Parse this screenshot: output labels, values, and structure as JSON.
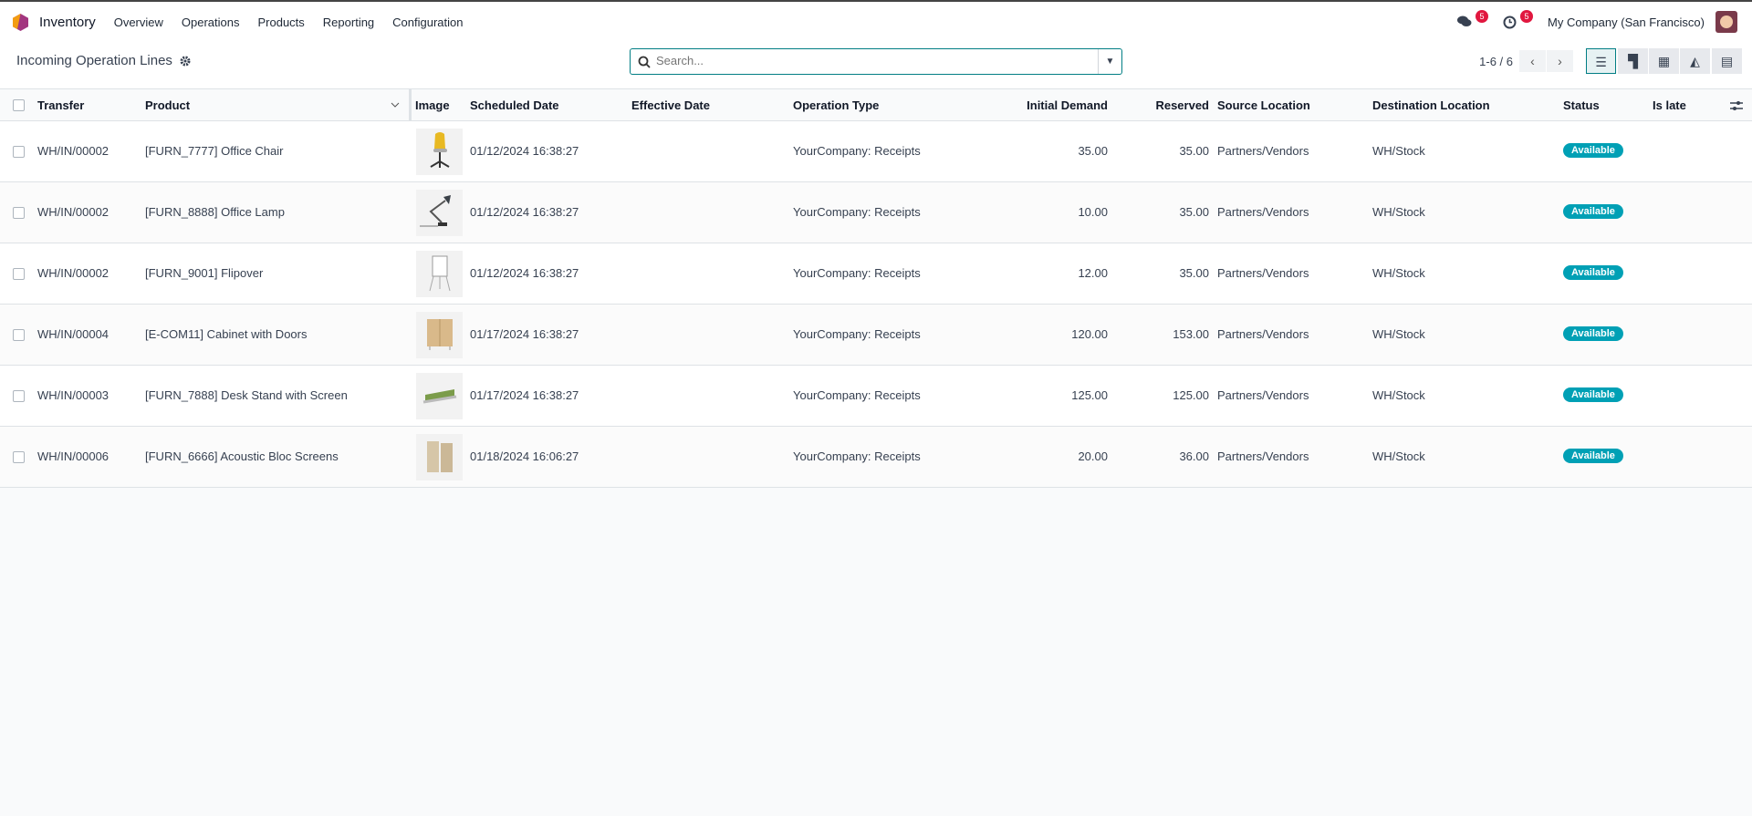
{
  "nav": {
    "app": "Inventory",
    "menu": [
      "Overview",
      "Operations",
      "Products",
      "Reporting",
      "Configuration"
    ],
    "messages_count": "5",
    "activities_count": "5",
    "company": "My Company (San Francisco)"
  },
  "control": {
    "title": "Incoming Operation Lines",
    "search_placeholder": "Search...",
    "pager": "1-6 / 6",
    "views": [
      "list",
      "kanban",
      "pivot",
      "graph",
      "calendar"
    ],
    "active_view": "list"
  },
  "table": {
    "headers": {
      "transfer": "Transfer",
      "product": "Product",
      "image": "Image",
      "scheduled": "Scheduled Date",
      "effective": "Effective Date",
      "optype": "Operation Type",
      "demand": "Initial Demand",
      "reserved": "Reserved",
      "source": "Source Location",
      "dest": "Destination Location",
      "status": "Status",
      "late": "Is late"
    },
    "rows": [
      {
        "transfer": "WH/IN/00002",
        "product": "[FURN_7777] Office Chair",
        "image": "chair",
        "scheduled": "01/12/2024 16:38:27",
        "effective": "",
        "optype": "YourCompany: Receipts",
        "demand": "35.00",
        "reserved": "35.00",
        "source": "Partners/Vendors",
        "dest": "WH/Stock",
        "status": "Available"
      },
      {
        "transfer": "WH/IN/00002",
        "product": "[FURN_8888] Office Lamp",
        "image": "lamp",
        "scheduled": "01/12/2024 16:38:27",
        "effective": "",
        "optype": "YourCompany: Receipts",
        "demand": "10.00",
        "reserved": "35.00",
        "source": "Partners/Vendors",
        "dest": "WH/Stock",
        "status": "Available"
      },
      {
        "transfer": "WH/IN/00002",
        "product": "[FURN_9001] Flipover",
        "image": "flipover",
        "scheduled": "01/12/2024 16:38:27",
        "effective": "",
        "optype": "YourCompany: Receipts",
        "demand": "12.00",
        "reserved": "35.00",
        "source": "Partners/Vendors",
        "dest": "WH/Stock",
        "status": "Available"
      },
      {
        "transfer": "WH/IN/00004",
        "product": "[E-COM11] Cabinet with Doors",
        "image": "cabinet",
        "scheduled": "01/17/2024 16:38:27",
        "effective": "",
        "optype": "YourCompany: Receipts",
        "demand": "120.00",
        "reserved": "153.00",
        "source": "Partners/Vendors",
        "dest": "WH/Stock",
        "status": "Available"
      },
      {
        "transfer": "WH/IN/00003",
        "product": "[FURN_7888] Desk Stand with Screen",
        "image": "desk-stand",
        "scheduled": "01/17/2024 16:38:27",
        "effective": "",
        "optype": "YourCompany: Receipts",
        "demand": "125.00",
        "reserved": "125.00",
        "source": "Partners/Vendors",
        "dest": "WH/Stock",
        "status": "Available"
      },
      {
        "transfer": "WH/IN/00006",
        "product": "[FURN_6666] Acoustic Bloc Screens",
        "image": "screens",
        "scheduled": "01/18/2024 16:06:27",
        "effective": "",
        "optype": "YourCompany: Receipts",
        "demand": "20.00",
        "reserved": "36.00",
        "source": "Partners/Vendors",
        "dest": "WH/Stock",
        "status": "Available"
      }
    ]
  },
  "colors": {
    "accent": "#017e84",
    "badge": "#00a0b5",
    "notification": "#e1173f"
  }
}
